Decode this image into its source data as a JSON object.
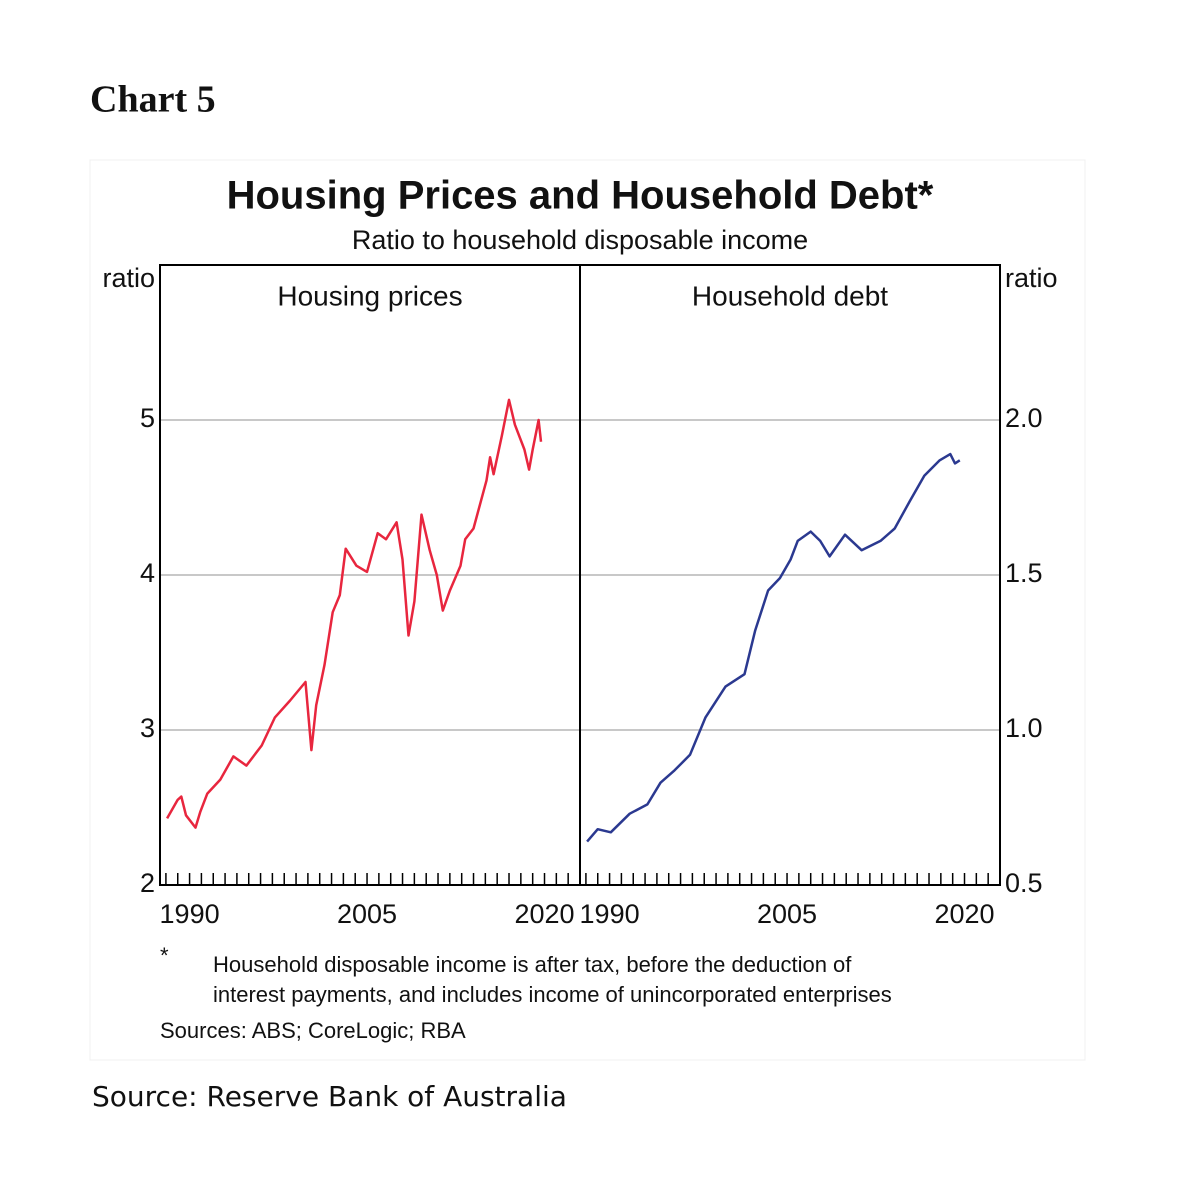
{
  "header": "Chart 5",
  "figure": {
    "title": "Housing Prices and Household Debt*",
    "subtitle": "Ratio to household disposable income",
    "footnote_marker": "*",
    "footnote": [
      "Household disposable income is after tax, before the deduction of",
      "interest payments, and includes income of unincorporated enterprises"
    ],
    "sources": "Sources: ABS; CoreLogic; RBA"
  },
  "caption": "Source: Reserve Bank of Australia",
  "chart_data": [
    {
      "type": "line",
      "title": "Housing prices",
      "y_label": "ratio",
      "y_axis_side": "left",
      "color": "#e8263e",
      "xlim": [
        1987.5,
        2023
      ],
      "xticks": [
        1990,
        2005,
        2020
      ],
      "xminor_ticks": [
        1988,
        1989,
        1990,
        1991,
        1992,
        1993,
        1994,
        1995,
        1996,
        1997,
        1998,
        1999,
        2000,
        2001,
        2002,
        2003,
        2004,
        2005,
        2006,
        2007,
        2008,
        2009,
        2010,
        2011,
        2012,
        2013,
        2014,
        2015,
        2016,
        2017,
        2018,
        2019,
        2020,
        2021,
        2022
      ],
      "ylim": [
        2,
        6
      ],
      "yticks": [
        2,
        3,
        4,
        5
      ],
      "grid": true,
      "x": [
        1988.1,
        1989.0,
        1989.3,
        1989.7,
        1990.5,
        1990.9,
        1991.5,
        1992.6,
        1993.7,
        1994.8,
        1996.1,
        1997.2,
        1998.5,
        1999.8,
        2000.3,
        2000.7,
        2001.4,
        2002.1,
        2002.7,
        2003.2,
        2004.1,
        2005.0,
        2005.9,
        2006.6,
        2007.5,
        2008.0,
        2008.5,
        2009.0,
        2009.6,
        2010.3,
        2010.9,
        2011.4,
        2012.0,
        2012.9,
        2013.3,
        2014.0,
        2015.1,
        2015.4,
        2015.7,
        2016.4,
        2017.0,
        2017.5,
        2018.3,
        2018.7,
        2019.0,
        2019.5,
        2019.7
      ],
      "values": [
        2.43,
        2.55,
        2.57,
        2.45,
        2.37,
        2.47,
        2.59,
        2.68,
        2.83,
        2.77,
        2.9,
        3.08,
        3.19,
        3.31,
        2.87,
        3.16,
        3.42,
        3.76,
        3.87,
        4.17,
        4.06,
        4.02,
        4.27,
        4.23,
        4.34,
        4.1,
        3.61,
        3.83,
        4.39,
        4.16,
        4.0,
        3.77,
        3.9,
        4.06,
        4.23,
        4.3,
        4.61,
        4.76,
        4.65,
        4.9,
        5.13,
        4.97,
        4.81,
        4.68,
        4.81,
        5.0,
        4.86
      ]
    },
    {
      "type": "line",
      "title": "Household debt",
      "y_label": "ratio",
      "y_axis_side": "right",
      "color": "#2b3990",
      "xlim": [
        1987.5,
        2023
      ],
      "xticks": [
        1990,
        2005,
        2020
      ],
      "xminor_ticks": [
        1988,
        1989,
        1990,
        1991,
        1992,
        1993,
        1994,
        1995,
        1996,
        1997,
        1998,
        1999,
        2000,
        2001,
        2002,
        2003,
        2004,
        2005,
        2006,
        2007,
        2008,
        2009,
        2010,
        2011,
        2012,
        2013,
        2014,
        2015,
        2016,
        2017,
        2018,
        2019,
        2020,
        2021,
        2022
      ],
      "ylim": [
        0.5,
        2.5
      ],
      "yticks": [
        0.5,
        {
          "value": 1,
          "label": "1.0"
        },
        1.5,
        {
          "value": 2,
          "label": "2.0"
        }
      ],
      "grid": true,
      "x": [
        1988.1,
        1989.0,
        1990.1,
        1991.7,
        1993.2,
        1994.3,
        1995.5,
        1996.8,
        1998.1,
        1999.8,
        2001.4,
        2002.3,
        2003.4,
        2004.4,
        2005.3,
        2005.9,
        2007.0,
        2007.8,
        2008.6,
        2009.9,
        2011.3,
        2012.9,
        2014.1,
        2015.4,
        2016.6,
        2017.9,
        2018.8,
        2019.2,
        2019.6
      ],
      "values": [
        0.64,
        0.68,
        0.67,
        0.73,
        0.76,
        0.83,
        0.87,
        0.92,
        1.04,
        1.14,
        1.18,
        1.32,
        1.45,
        1.49,
        1.55,
        1.61,
        1.64,
        1.61,
        1.56,
        1.63,
        1.58,
        1.61,
        1.65,
        1.74,
        1.82,
        1.87,
        1.89,
        1.86,
        1.87
      ]
    }
  ]
}
